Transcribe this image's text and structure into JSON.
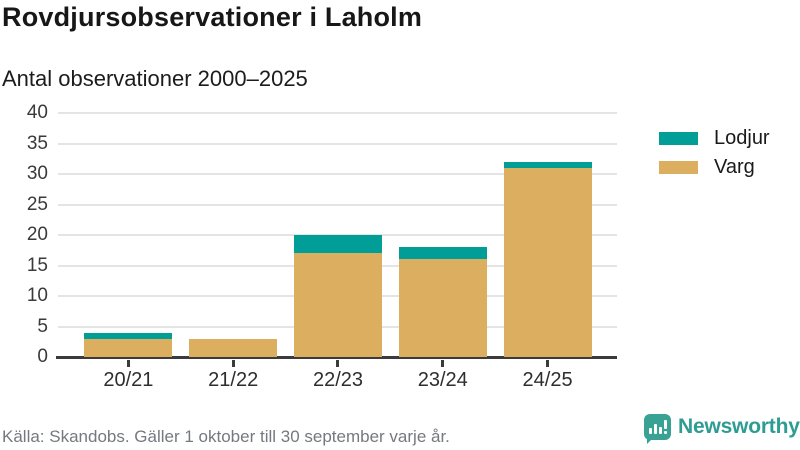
{
  "header": {
    "title": "Rovdjursobservationer i Laholm",
    "subtitle": "Antal observationer 2000–2025"
  },
  "chart_data": {
    "type": "bar",
    "stacked": true,
    "title": "Rovdjursobservationer i Laholm",
    "subtitle": "Antal observationer 2000–2025",
    "categories": [
      "20/21",
      "21/22",
      "22/23",
      "23/24",
      "24/25"
    ],
    "series": [
      {
        "name": "Lodjur",
        "color": "#009e96",
        "values": [
          1,
          0,
          3,
          2,
          1
        ]
      },
      {
        "name": "Varg",
        "color": "#dcae5f",
        "values": [
          3,
          3,
          17,
          16,
          31
        ]
      }
    ],
    "totals": [
      4,
      3,
      20,
      18,
      32
    ],
    "ylim": [
      0,
      40
    ],
    "yticks": [
      0,
      5,
      10,
      15,
      20,
      25,
      30,
      35,
      40
    ],
    "grid": true,
    "legend_position": "right"
  },
  "legend": {
    "items": [
      {
        "label": "Lodjur",
        "color": "#009e96"
      },
      {
        "label": "Varg",
        "color": "#dcae5f"
      }
    ]
  },
  "footer": {
    "source": "Källa: Skandobs. Gäller 1 oktober till 30 september varje år.",
    "brand": "Newsworthy"
  },
  "colors": {
    "lodjur": "#009e96",
    "varg": "#dcae5f",
    "axis": "#3b3b3b",
    "gridline": "#e4e4e4",
    "brand_teal": "#2d9c92",
    "source_text": "#75797f"
  }
}
